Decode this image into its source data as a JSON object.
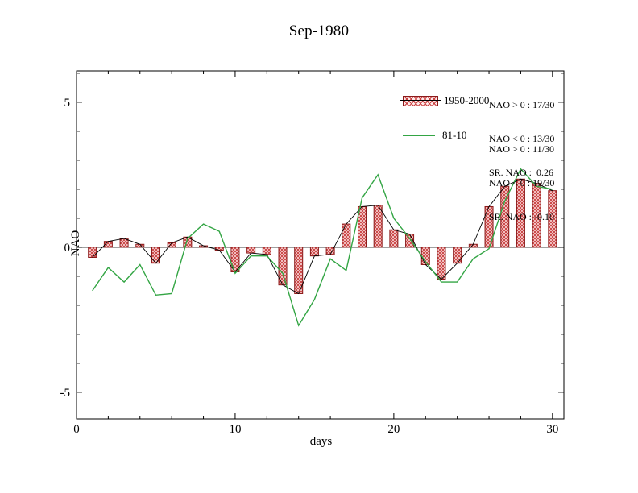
{
  "title": "Sep-1980",
  "chart_data": {
    "type": "bar",
    "title": "Sep-1980",
    "xlabel": "days",
    "ylabel": "NAO",
    "xlim": [
      0,
      30.72
    ],
    "ylim": [
      -5.92,
      6.08
    ],
    "xticks": [
      0,
      10,
      20,
      30
    ],
    "xtick_labels": [
      "0",
      "10",
      "20",
      "30"
    ],
    "yticks": [
      -5,
      0,
      5
    ],
    "ytick_labels": [
      "-5",
      "0",
      "5"
    ],
    "x": [
      1,
      2,
      3,
      4,
      5,
      6,
      7,
      8,
      9,
      10,
      11,
      12,
      13,
      14,
      15,
      16,
      17,
      18,
      19,
      20,
      21,
      22,
      23,
      24,
      25,
      26,
      27,
      28,
      29,
      30
    ],
    "series": [
      {
        "name": "1950-2000",
        "type": "bar",
        "values": [
          -0.35,
          0.2,
          0.3,
          0.1,
          -0.55,
          0.15,
          0.35,
          0.05,
          -0.1,
          -0.85,
          -0.2,
          -0.25,
          -1.3,
          -1.6,
          -0.3,
          -0.25,
          0.8,
          1.4,
          1.45,
          0.6,
          0.45,
          -0.6,
          -1.1,
          -0.55,
          0.1,
          1.4,
          2.1,
          2.35,
          2.2,
          1.95
        ]
      },
      {
        "name": "81-10",
        "type": "line",
        "values": [
          -1.5,
          -0.7,
          -1.2,
          -0.6,
          -1.65,
          -1.6,
          0.3,
          0.8,
          0.55,
          -0.9,
          -0.3,
          -0.3,
          -0.9,
          -2.7,
          -1.8,
          -0.4,
          -0.8,
          1.7,
          2.5,
          1.0,
          0.3,
          -0.5,
          -1.2,
          -1.2,
          -0.4,
          -0.05,
          1.6,
          2.7,
          2.1,
          2.0
        ]
      }
    ],
    "legend_position": "upper-center-right",
    "grid": false
  },
  "colors": {
    "bar_fill_bg": "#fdeaea",
    "bar_hatch": "#c94040",
    "bar_edge": "#8b1a1a",
    "bar_value_line": "#000000",
    "green_line": "#33a544",
    "axis": "#000000"
  },
  "legend": {
    "bars_label": "1950-2000",
    "line_label": "81-10"
  },
  "stats": {
    "bars": [
      "NAO > 0 : 17/30",
      "NAO < 0 : 13/30",
      "SR. NAO :  0.26"
    ],
    "line": [
      "NAO > 0 : 11/30",
      "NAO < 0 : 19/30",
      "SR. NAO : -0.10"
    ]
  }
}
